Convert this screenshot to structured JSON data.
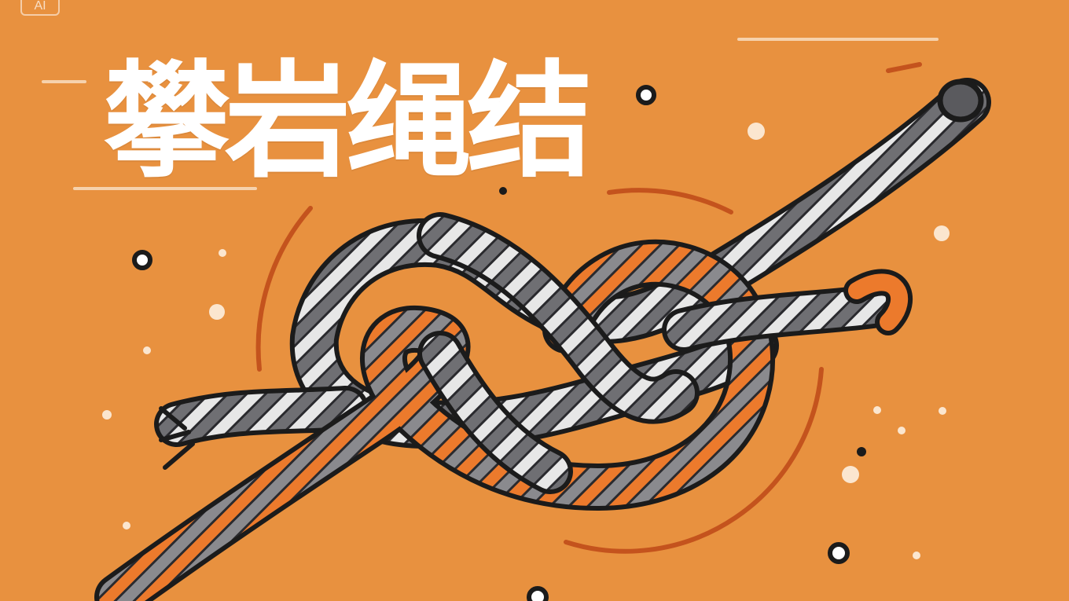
{
  "title": "攀岩绳结",
  "badge": "AI",
  "colors": {
    "background": "#e8913f",
    "title": "#ffffff",
    "rope_gray": "#6f6f73",
    "rope_light": "#e7e7e7",
    "rope_orange": "#ec7a2c",
    "outline": "#1b1b1b",
    "arc": "#c4531d"
  },
  "image": {
    "subject": "rope-knot",
    "style": "flat-illustration"
  }
}
